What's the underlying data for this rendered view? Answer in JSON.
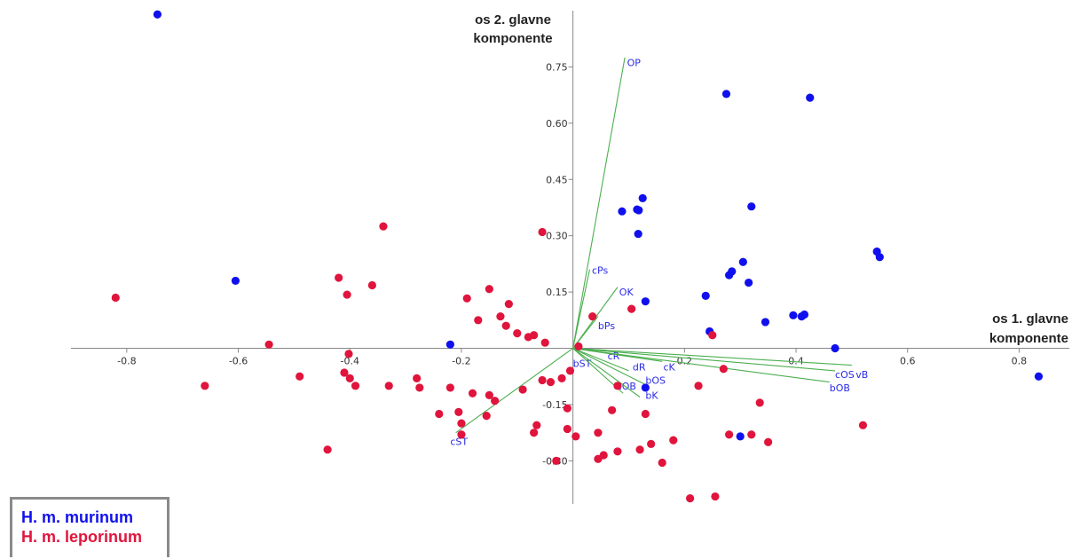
{
  "chart_data": {
    "type": "scatter",
    "xlabel": [
      "os 1. glavne",
      "komponente"
    ],
    "ylabel": [
      "os 2. glavne",
      "komponente"
    ],
    "xlim": [
      -0.9,
      0.89
    ],
    "ylim": [
      -0.415,
      0.9
    ],
    "xticks": [
      -0.8,
      -0.6,
      -0.4,
      -0.2,
      0.2,
      0.4,
      0.6,
      0.8
    ],
    "yticks": [
      -0.3,
      -0.15,
      0.15,
      0.3,
      0.45,
      0.6,
      0.75
    ],
    "xtick_labels": [
      "-0.8",
      "-0.6",
      "-0.4",
      "-0.2",
      "0.2",
      "0.4",
      "0.6",
      "0.8"
    ],
    "ytick_labels": [
      "-0.30",
      "-0.15",
      "0.15",
      "0.30",
      "0.45",
      "0.60",
      "0.75"
    ],
    "grid": false,
    "legend_position": "bottom-left",
    "series": [
      {
        "name": "H. m. murinum",
        "color": "#1010ee",
        "points": [
          [
            -0.745,
            0.89
          ],
          [
            -0.605,
            0.18
          ],
          [
            -0.22,
            0.01
          ],
          [
            0.088,
            0.365
          ],
          [
            0.115,
            0.37
          ],
          [
            0.118,
            0.368
          ],
          [
            0.125,
            0.4
          ],
          [
            0.117,
            0.305
          ],
          [
            0.13,
            0.125
          ],
          [
            0.275,
            0.678
          ],
          [
            0.425,
            0.668
          ],
          [
            0.32,
            0.378
          ],
          [
            0.545,
            0.258
          ],
          [
            0.55,
            0.243
          ],
          [
            0.305,
            0.23
          ],
          [
            0.285,
            0.205
          ],
          [
            0.28,
            0.195
          ],
          [
            0.315,
            0.175
          ],
          [
            0.238,
            0.14
          ],
          [
            0.345,
            0.07
          ],
          [
            0.395,
            0.088
          ],
          [
            0.41,
            0.085
          ],
          [
            0.415,
            0.09
          ],
          [
            0.245,
            0.045
          ],
          [
            0.47,
            0.0
          ],
          [
            0.835,
            -0.075
          ],
          [
            0.13,
            -0.105
          ],
          [
            0.3,
            -0.235
          ]
        ]
      },
      {
        "name": "H. m. leporinum",
        "color": "#e0143c",
        "points": [
          [
            -0.82,
            0.135
          ],
          [
            -0.66,
            -0.1
          ],
          [
            -0.545,
            0.01
          ],
          [
            -0.49,
            -0.075
          ],
          [
            -0.44,
            -0.27
          ],
          [
            -0.42,
            0.188
          ],
          [
            -0.41,
            -0.065
          ],
          [
            -0.405,
            0.143
          ],
          [
            -0.4,
            -0.08
          ],
          [
            -0.402,
            -0.015
          ],
          [
            -0.39,
            -0.1
          ],
          [
            -0.36,
            0.168
          ],
          [
            -0.34,
            0.325
          ],
          [
            -0.33,
            -0.1
          ],
          [
            -0.28,
            -0.08
          ],
          [
            -0.275,
            -0.105
          ],
          [
            -0.24,
            -0.175
          ],
          [
            -0.22,
            -0.105
          ],
          [
            -0.205,
            -0.17
          ],
          [
            -0.2,
            -0.2
          ],
          [
            -0.2,
            -0.23
          ],
          [
            -0.19,
            0.133
          ],
          [
            -0.18,
            -0.12
          ],
          [
            -0.17,
            0.075
          ],
          [
            -0.155,
            -0.18
          ],
          [
            -0.15,
            0.158
          ],
          [
            -0.15,
            -0.125
          ],
          [
            -0.14,
            -0.14
          ],
          [
            -0.13,
            0.085
          ],
          [
            -0.12,
            0.06
          ],
          [
            -0.115,
            0.118
          ],
          [
            -0.1,
            0.04
          ],
          [
            -0.09,
            -0.11
          ],
          [
            -0.08,
            0.03
          ],
          [
            -0.07,
            0.035
          ],
          [
            -0.07,
            -0.225
          ],
          [
            -0.065,
            -0.205
          ],
          [
            -0.055,
            0.31
          ],
          [
            -0.055,
            -0.085
          ],
          [
            -0.05,
            0.015
          ],
          [
            -0.04,
            -0.09
          ],
          [
            -0.03,
            -0.3
          ],
          [
            -0.02,
            -0.08
          ],
          [
            -0.01,
            -0.16
          ],
          [
            -0.01,
            -0.215
          ],
          [
            -0.005,
            -0.06
          ],
          [
            0.005,
            -0.235
          ],
          [
            0.01,
            0.005
          ],
          [
            0.035,
            0.085
          ],
          [
            0.045,
            -0.225
          ],
          [
            0.045,
            -0.295
          ],
          [
            0.055,
            -0.285
          ],
          [
            0.07,
            -0.165
          ],
          [
            0.08,
            -0.1
          ],
          [
            0.08,
            -0.275
          ],
          [
            0.105,
            0.105
          ],
          [
            0.12,
            -0.27
          ],
          [
            0.13,
            -0.175
          ],
          [
            0.14,
            -0.255
          ],
          [
            0.16,
            -0.305
          ],
          [
            0.18,
            -0.245
          ],
          [
            0.21,
            -0.4
          ],
          [
            0.225,
            -0.1
          ],
          [
            0.25,
            0.035
          ],
          [
            0.255,
            -0.395
          ],
          [
            0.27,
            -0.055
          ],
          [
            0.28,
            -0.23
          ],
          [
            0.32,
            -0.23
          ],
          [
            0.335,
            -0.145
          ],
          [
            0.35,
            -0.25
          ],
          [
            0.52,
            -0.205
          ]
        ]
      }
    ],
    "loading_vectors": [
      {
        "label": "OP",
        "x": 0.093,
        "y": 0.775,
        "lx": 0.097,
        "ly": 0.762
      },
      {
        "label": "cPs",
        "x": 0.03,
        "y": 0.21,
        "lx": 0.034,
        "ly": 0.208
      },
      {
        "label": "OK",
        "x": 0.08,
        "y": 0.163,
        "lx": 0.083,
        "ly": 0.15
      },
      {
        "label": "bPs",
        "x": 0.045,
        "y": 0.085,
        "lx": 0.045,
        "ly": 0.06
      },
      {
        "label": "bST",
        "x": 0.005,
        "y": -0.005,
        "lx": 0.0,
        "ly": -0.04
      },
      {
        "label": "cR",
        "x": 0.06,
        "y": -0.005,
        "lx": 0.062,
        "ly": -0.02
      },
      {
        "label": "dR",
        "x": 0.1,
        "y": -0.06,
        "lx": 0.107,
        "ly": -0.05
      },
      {
        "label": "cK",
        "x": 0.16,
        "y": -0.035,
        "lx": 0.162,
        "ly": -0.05
      },
      {
        "label": "cOB",
        "x": 0.09,
        "y": -0.12,
        "lx": 0.078,
        "ly": -0.1
      },
      {
        "label": "bOS",
        "x": 0.128,
        "y": -0.095,
        "lx": 0.13,
        "ly": -0.085
      },
      {
        "label": "bK",
        "x": 0.12,
        "y": -0.13,
        "lx": 0.13,
        "ly": -0.125
      },
      {
        "label": "cOS",
        "x": 0.47,
        "y": -0.06,
        "lx": 0.47,
        "ly": -0.07
      },
      {
        "label": "vB",
        "x": 0.5,
        "y": -0.045,
        "lx": 0.507,
        "ly": -0.07
      },
      {
        "label": "bOB",
        "x": 0.46,
        "y": -0.09,
        "lx": 0.46,
        "ly": -0.105
      },
      {
        "label": "cST",
        "x": -0.21,
        "y": -0.225,
        "lx": -0.22,
        "ly": -0.248
      }
    ]
  },
  "colors": {
    "murinum": "#1010ee",
    "leporinum": "#e0143c",
    "vector_line": "#4caf50",
    "vector_label": "#2a2ae8",
    "axis": "#888888"
  },
  "legend": {
    "murinum_label": "H. m. murinum",
    "leporinum_label": "H. m. leporinum"
  }
}
